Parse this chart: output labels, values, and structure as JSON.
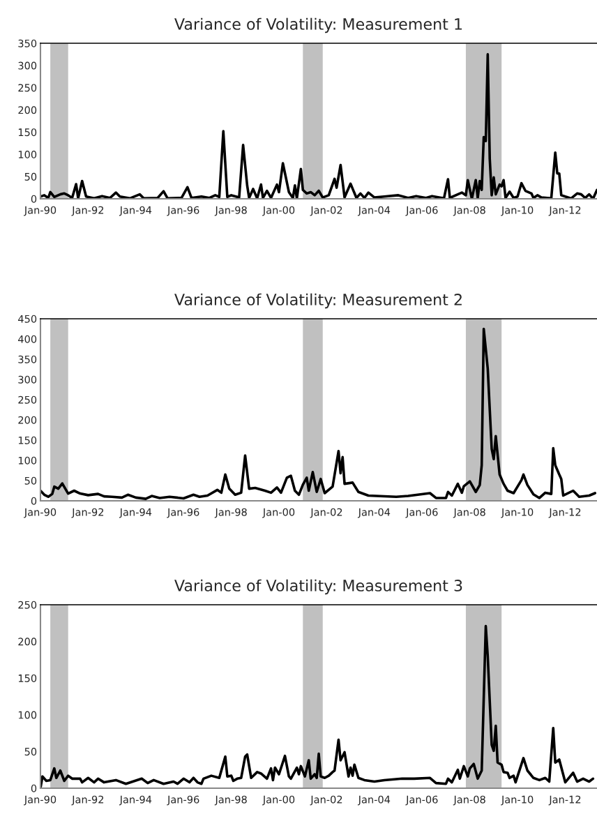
{
  "chart_data": [
    {
      "type": "line",
      "title": "Variance of Volatility: Measurement 1",
      "xlim": [
        "1990-01",
        "2013-05"
      ],
      "ylim": [
        0,
        350
      ],
      "yticks": [
        0,
        50,
        100,
        150,
        200,
        250,
        300,
        350
      ],
      "xticks": [
        {
          "value": "1990-01",
          "label": "Jan-90"
        },
        {
          "value": "1992-01",
          "label": "Jan-92"
        },
        {
          "value": "1994-01",
          "label": "Jan-94"
        },
        {
          "value": "1996-01",
          "label": "Jan-96"
        },
        {
          "value": "1998-01",
          "label": "Jan-98"
        },
        {
          "value": "2000-01",
          "label": "Jan-00"
        },
        {
          "value": "2002-01",
          "label": "Jan-02"
        },
        {
          "value": "2004-01",
          "label": "Jan-04"
        },
        {
          "value": "2006-01",
          "label": "Jan-06"
        },
        {
          "value": "2008-01",
          "label": "Jan-08"
        },
        {
          "value": "2010-01",
          "label": "Jan-10"
        },
        {
          "value": "2012-01",
          "label": "Jan-12"
        }
      ],
      "bands": [
        {
          "axis": "x",
          "from": "1990-06",
          "to": "1991-03",
          "color": "#c0c0c0"
        },
        {
          "axis": "x",
          "from": "2001-01",
          "to": "2001-11",
          "color": "#c0c0c0"
        },
        {
          "axis": "x",
          "from": "2007-11",
          "to": "2009-05",
          "color": "#c0c0c0"
        }
      ],
      "series": [
        {
          "color": "#000000",
          "x": [
            "1990-01",
            "1990-03",
            "1990-05",
            "1990-06",
            "1990-08",
            "1990-11",
            "1991-01",
            "1991-03",
            "1991-05",
            "1991-07",
            "1991-08",
            "1991-10",
            "1991-12",
            "1992-04",
            "1992-08",
            "1992-12",
            "1993-03",
            "1993-05",
            "1993-10",
            "1994-03",
            "1994-05",
            "1994-12",
            "1995-03",
            "1995-05",
            "1995-12",
            "1996-03",
            "1996-05",
            "1996-10",
            "1997-02",
            "1997-05",
            "1997-07",
            "1997-09",
            "1997-11",
            "1998-01",
            "1998-05",
            "1998-07",
            "1998-09",
            "1998-10",
            "1998-12",
            "1999-02",
            "1999-04",
            "1999-05",
            "1999-07",
            "1999-09",
            "1999-12",
            "2000-01",
            "2000-03",
            "2000-06",
            "2000-08",
            "2000-09",
            "2000-10",
            "2000-12",
            "2001-01",
            "2001-03",
            "2001-05",
            "2001-07",
            "2001-09",
            "2001-11",
            "2002-02",
            "2002-05",
            "2002-06",
            "2002-08",
            "2002-10",
            "2003-01",
            "2003-04",
            "2003-06",
            "2003-08",
            "2003-10",
            "2004-01",
            "2004-06",
            "2005-01",
            "2005-06",
            "2005-10",
            "2006-03",
            "2006-06",
            "2006-12",
            "2007-02",
            "2007-03",
            "2007-07",
            "2007-09",
            "2007-11",
            "2007-12",
            "2008-02",
            "2008-04",
            "2008-05",
            "2008-06",
            "2008-07",
            "2008-08",
            "2008-09",
            "2008-10",
            "2008-11",
            "2008-12",
            "2009-01",
            "2009-02",
            "2009-04",
            "2009-05",
            "2009-06",
            "2009-07",
            "2009-09",
            "2009-11",
            "2010-01",
            "2010-03",
            "2010-05",
            "2010-08",
            "2010-09",
            "2010-11",
            "2011-01",
            "2011-06",
            "2011-08",
            "2011-09",
            "2011-10",
            "2011-11",
            "2012-01",
            "2012-04",
            "2012-07",
            "2012-09",
            "2012-11",
            "2013-01",
            "2013-03",
            "2013-05"
          ],
          "values": [
            5,
            8,
            2,
            15,
            4,
            10,
            12,
            8,
            2,
            33,
            1,
            40,
            5,
            1,
            6,
            2,
            14,
            5,
            1,
            10,
            1,
            2,
            17,
            1,
            2,
            26,
            2,
            5,
            2,
            8,
            4,
            152,
            4,
            8,
            3,
            121,
            30,
            2,
            22,
            1,
            32,
            2,
            18,
            2,
            32,
            15,
            80,
            15,
            2,
            30,
            1,
            67,
            20,
            12,
            15,
            8,
            18,
            3,
            8,
            45,
            25,
            76,
            3,
            34,
            2,
            12,
            2,
            14,
            3,
            5,
            8,
            2,
            6,
            2,
            6,
            1,
            44,
            2,
            10,
            14,
            8,
            42,
            0,
            42,
            2,
            40,
            20,
            139,
            130,
            325,
            90,
            8,
            48,
            10,
            32,
            28,
            42,
            2,
            16,
            2,
            5,
            35,
            18,
            12,
            2,
            8,
            3,
            1,
            104,
            57,
            57,
            8,
            5,
            1,
            12,
            10,
            2,
            10,
            0,
            20
          ]
        }
      ]
    },
    {
      "type": "line",
      "title": "Variance of Volatility: Measurement 2",
      "xlim": [
        "1990-01",
        "2013-05"
      ],
      "ylim": [
        0,
        450
      ],
      "yticks": [
        0,
        50,
        100,
        150,
        200,
        250,
        300,
        350,
        400,
        450
      ],
      "xticks": [
        {
          "value": "1990-01",
          "label": "Jan-90"
        },
        {
          "value": "1992-01",
          "label": "Jan-92"
        },
        {
          "value": "1994-01",
          "label": "Jan-94"
        },
        {
          "value": "1996-01",
          "label": "Jan-96"
        },
        {
          "value": "1998-01",
          "label": "Jan-98"
        },
        {
          "value": "2000-01",
          "label": "Jan-00"
        },
        {
          "value": "2002-01",
          "label": "Jan-02"
        },
        {
          "value": "2004-01",
          "label": "Jan-04"
        },
        {
          "value": "2006-01",
          "label": "Jan-06"
        },
        {
          "value": "2008-01",
          "label": "Jan-08"
        },
        {
          "value": "2010-01",
          "label": "Jan-10"
        },
        {
          "value": "2012-01",
          "label": "Jan-12"
        }
      ],
      "bands": [
        {
          "axis": "x",
          "from": "1990-06",
          "to": "1991-03",
          "color": "#c0c0c0"
        },
        {
          "axis": "x",
          "from": "2001-01",
          "to": "2001-11",
          "color": "#c0c0c0"
        },
        {
          "axis": "x",
          "from": "2007-11",
          "to": "2009-05",
          "color": "#c0c0c0"
        }
      ],
      "series": [
        {
          "color": "#000000",
          "x": [
            "1990-01",
            "1990-03",
            "1990-05",
            "1990-07",
            "1990-08",
            "1990-10",
            "1990-12",
            "1991-03",
            "1991-06",
            "1991-09",
            "1992-01",
            "1992-06",
            "1992-09",
            "1993-01",
            "1993-06",
            "1993-09",
            "1994-01",
            "1994-06",
            "1994-09",
            "1995-01",
            "1995-06",
            "1996-01",
            "1996-06",
            "1996-09",
            "1997-01",
            "1997-06",
            "1997-08",
            "1997-10",
            "1997-12",
            "1998-03",
            "1998-06",
            "1998-08",
            "1998-10",
            "1999-01",
            "1999-06",
            "1999-09",
            "1999-12",
            "2000-02",
            "2000-05",
            "2000-07",
            "2000-09",
            "2000-11",
            "2001-01",
            "2001-03",
            "2001-04",
            "2001-06",
            "2001-08",
            "2001-10",
            "2001-12",
            "2002-04",
            "2002-07",
            "2002-08",
            "2002-09",
            "2002-10",
            "2003-02",
            "2003-05",
            "2003-10",
            "2004-12",
            "2005-06",
            "2006-05",
            "2006-08",
            "2007-01",
            "2007-02",
            "2007-04",
            "2007-07",
            "2007-09",
            "2007-10",
            "2008-01",
            "2008-04",
            "2008-06",
            "2008-07",
            "2008-08",
            "2008-10",
            "2008-12",
            "2009-01",
            "2009-02",
            "2009-04",
            "2009-06",
            "2009-08",
            "2009-11",
            "2010-03",
            "2010-04",
            "2010-06",
            "2010-09",
            "2010-12",
            "2011-03",
            "2011-06",
            "2011-07",
            "2011-08",
            "2011-10",
            "2011-11",
            "2011-12",
            "2012-05",
            "2012-08",
            "2013-01",
            "2013-04"
          ],
          "values": [
            25,
            15,
            10,
            17,
            35,
            30,
            43,
            18,
            25,
            18,
            14,
            17,
            11,
            10,
            8,
            15,
            8,
            5,
            12,
            7,
            10,
            6,
            15,
            10,
            13,
            27,
            20,
            65,
            30,
            15,
            20,
            112,
            30,
            32,
            25,
            20,
            33,
            20,
            57,
            62,
            25,
            15,
            40,
            57,
            25,
            71,
            22,
            54,
            19,
            35,
            123,
            68,
            108,
            42,
            45,
            22,
            13,
            10,
            12,
            19,
            7,
            7,
            22,
            13,
            42,
            20,
            36,
            48,
            22,
            39,
            88,
            425,
            327,
            128,
            103,
            160,
            65,
            42,
            25,
            19,
            51,
            65,
            39,
            16,
            7,
            20,
            17,
            130,
            88,
            65,
            54,
            13,
            25,
            10,
            13,
            19
          ]
        }
      ]
    },
    {
      "type": "line",
      "title": "Variance of Volatility: Measurement 3",
      "xlim": [
        "1990-01",
        "2013-05"
      ],
      "ylim": [
        0,
        250
      ],
      "yticks": [
        0,
        50,
        100,
        150,
        200,
        250
      ],
      "xticks": [
        {
          "value": "1990-01",
          "label": "Jan-90"
        },
        {
          "value": "1992-01",
          "label": "Jan-92"
        },
        {
          "value": "1994-01",
          "label": "Jan-94"
        },
        {
          "value": "1996-01",
          "label": "Jan-96"
        },
        {
          "value": "1998-01",
          "label": "Jan-98"
        },
        {
          "value": "2000-01",
          "label": "Jan-00"
        },
        {
          "value": "2002-01",
          "label": "Jan-02"
        },
        {
          "value": "2004-01",
          "label": "Jan-04"
        },
        {
          "value": "2006-01",
          "label": "Jan-06"
        },
        {
          "value": "2008-01",
          "label": "Jan-08"
        },
        {
          "value": "2010-01",
          "label": "Jan-10"
        },
        {
          "value": "2012-01",
          "label": "Jan-12"
        }
      ],
      "bands": [
        {
          "axis": "x",
          "from": "1990-06",
          "to": "1991-03",
          "color": "#c0c0c0"
        },
        {
          "axis": "x",
          "from": "2001-01",
          "to": "2001-11",
          "color": "#c0c0c0"
        },
        {
          "axis": "x",
          "from": "2007-11",
          "to": "2009-05",
          "color": "#c0c0c0"
        }
      ],
      "series": [
        {
          "color": "#000000",
          "x": [
            "1990-01",
            "1990-02",
            "1990-04",
            "1990-06",
            "1990-08",
            "1990-09",
            "1990-11",
            "1991-01",
            "1991-03",
            "1991-05",
            "1991-09",
            "1991-10",
            "1992-01",
            "1992-04",
            "1992-06",
            "1992-09",
            "1993-03",
            "1993-08",
            "1994-04",
            "1994-07",
            "1994-10",
            "1995-03",
            "1995-08",
            "1995-10",
            "1996-01",
            "1996-04",
            "1996-06",
            "1996-08",
            "1996-10",
            "1996-11",
            "1997-03",
            "1997-07",
            "1997-10",
            "1997-11",
            "1998-01",
            "1998-02",
            "1998-04",
            "1998-06",
            "1998-08",
            "1998-09",
            "1998-11",
            "1999-02",
            "1999-04",
            "1999-07",
            "1999-09",
            "1999-10",
            "1999-11",
            "2000-01",
            "2000-04",
            "2000-06",
            "2000-07",
            "2000-10",
            "2000-11",
            "2000-12",
            "2001-02",
            "2001-04",
            "2001-05",
            "2001-07",
            "2001-08",
            "2001-09",
            "2001-10",
            "2001-12",
            "2002-02",
            "2002-04",
            "2002-05",
            "2002-07",
            "2002-08",
            "2002-10",
            "2002-12",
            "2003-01",
            "2003-02",
            "2003-03",
            "2003-05",
            "2003-08",
            "2004-01",
            "2004-06",
            "2005-03",
            "2005-09",
            "2006-05",
            "2006-08",
            "2007-01",
            "2007-02",
            "2007-04",
            "2007-07",
            "2007-08",
            "2007-10",
            "2007-12",
            "2008-01",
            "2008-03",
            "2008-05",
            "2008-07",
            "2008-09",
            "2008-10",
            "2008-12",
            "2009-01",
            "2009-02",
            "2009-03",
            "2009-05",
            "2009-06",
            "2009-08",
            "2009-09",
            "2009-11",
            "2009-12",
            "2010-04",
            "2010-06",
            "2010-09",
            "2010-12",
            "2011-03",
            "2011-05",
            "2011-07",
            "2011-08",
            "2011-10",
            "2012-01",
            "2012-05",
            "2012-07",
            "2012-10",
            "2013-01",
            "2013-03"
          ],
          "values": [
            0,
            16,
            10,
            11,
            27,
            14,
            24,
            10,
            17,
            13,
            13,
            8,
            14,
            8,
            13,
            8,
            11,
            6,
            13,
            7,
            11,
            6,
            9,
            6,
            13,
            8,
            14,
            8,
            6,
            13,
            17,
            14,
            43,
            16,
            17,
            10,
            13,
            14,
            43,
            46,
            14,
            22,
            20,
            13,
            27,
            11,
            28,
            19,
            44,
            16,
            13,
            28,
            19,
            30,
            16,
            38,
            13,
            19,
            14,
            47,
            16,
            14,
            17,
            22,
            24,
            66,
            38,
            49,
            16,
            28,
            17,
            32,
            14,
            11,
            9,
            11,
            13,
            13,
            14,
            7,
            6,
            13,
            8,
            25,
            13,
            30,
            16,
            27,
            33,
            13,
            24,
            221,
            180,
            59,
            51,
            85,
            35,
            32,
            22,
            21,
            14,
            17,
            8,
            41,
            24,
            14,
            11,
            14,
            9,
            82,
            35,
            39,
            8,
            21,
            9,
            13,
            9,
            13
          ]
        }
      ]
    }
  ]
}
